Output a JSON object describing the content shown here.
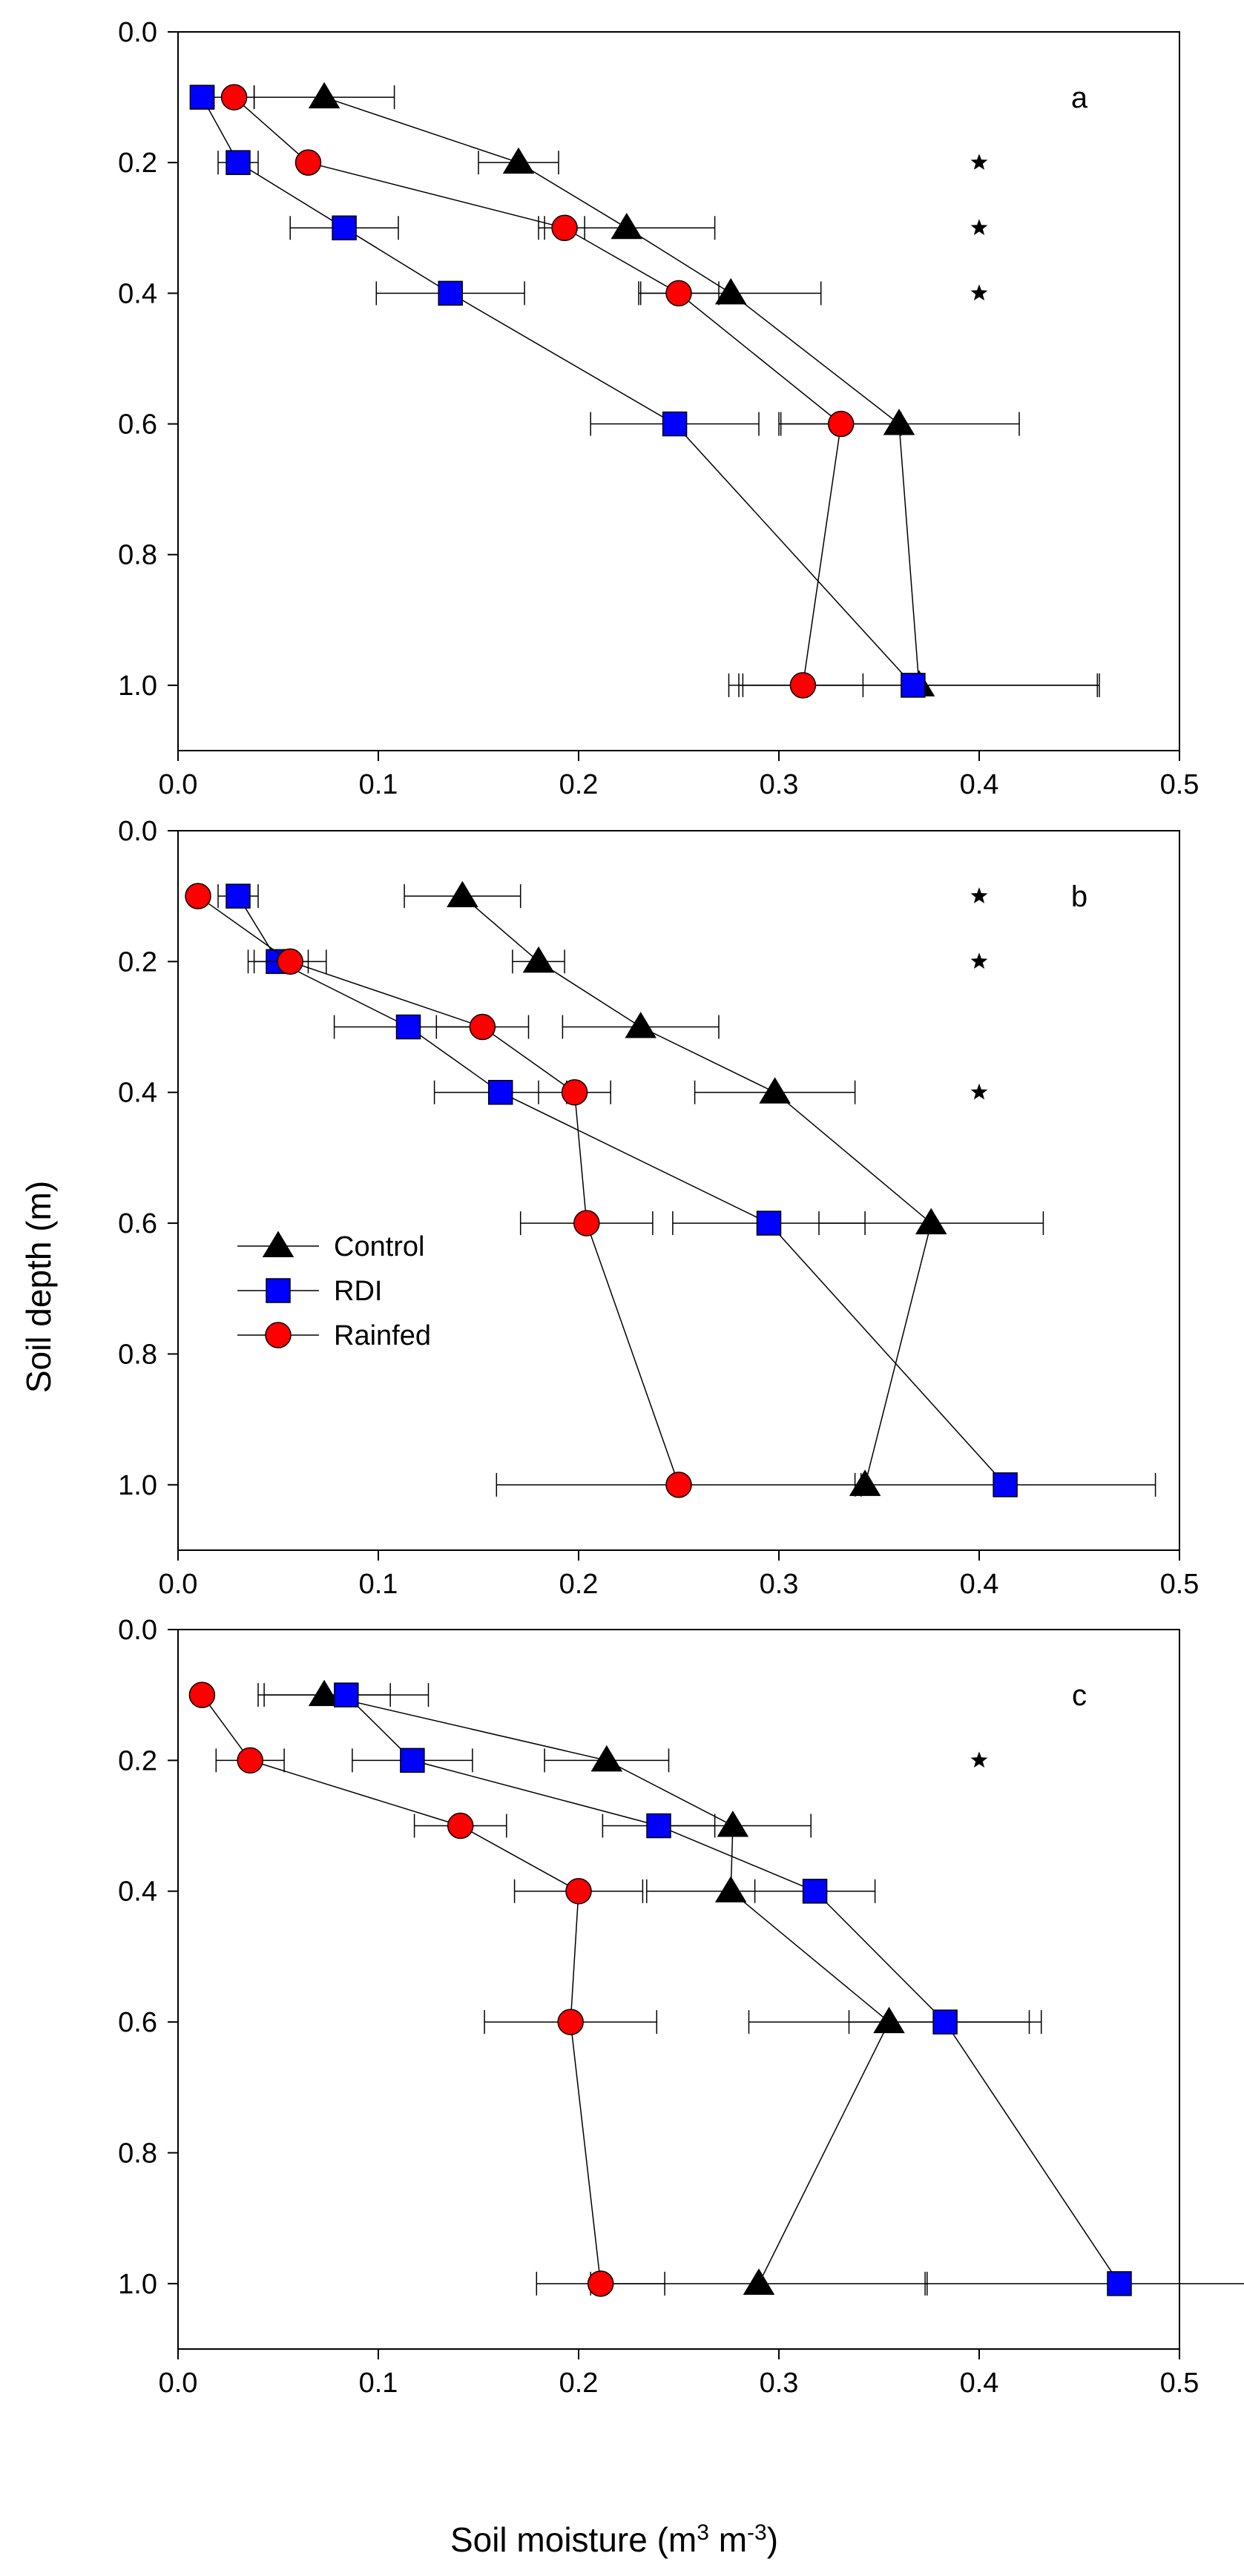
{
  "figure": {
    "xlabel_main": "Soil moisture (m",
    "xlabel_sup1": "3",
    "xlabel_mid": " m",
    "xlabel_sup2": "-3",
    "xlabel_end": ")",
    "ylabel": "Soil depth (m)"
  },
  "legend": {
    "items": [
      {
        "label": "Control",
        "marker": "triangle",
        "color": "#000000"
      },
      {
        "label": "RDI",
        "marker": "square",
        "color": "#0000ff"
      },
      {
        "label": "Rainfed",
        "marker": "circle",
        "color": "#ff0000"
      }
    ]
  },
  "chart_data": [
    {
      "type": "line",
      "panel": "a",
      "xlabel": "Soil moisture (m3 m-3)",
      "ylabel": "Soil depth (m)",
      "xlim": [
        0,
        0.5
      ],
      "ylim": [
        0,
        1.1
      ],
      "y_inverted": true,
      "x_ticks": [
        "0.0",
        "0.1",
        "0.2",
        "0.3",
        "0.4",
        "0.5"
      ],
      "y_ticks": [
        "0.0",
        "0.2",
        "0.4",
        "0.6",
        "0.8",
        "1.0"
      ],
      "significance_depths": [
        0.2,
        0.3,
        0.4
      ],
      "significance_x": 0.4,
      "series": [
        {
          "name": "Control",
          "marker": "triangle",
          "color": "#000000",
          "depth": [
            0.1,
            0.2,
            0.3,
            0.4,
            0.6,
            1.0
          ],
          "values": [
            0.073,
            0.17,
            0.224,
            0.276,
            0.36,
            0.37
          ],
          "errors": [
            0.035,
            0.02,
            0.044,
            0.045,
            0.06,
            0.09
          ]
        },
        {
          "name": "RDI",
          "marker": "square",
          "color": "#0000ff",
          "depth": [
            0.1,
            0.2,
            0.3,
            0.4,
            0.6,
            1.0
          ],
          "values": [
            0.012,
            0.03,
            0.083,
            0.136,
            0.248,
            0.367
          ],
          "errors": [
            0.0,
            0.01,
            0.027,
            0.037,
            0.042,
            0.092
          ]
        },
        {
          "name": "Rainfed",
          "marker": "circle",
          "color": "#ff0000",
          "depth": [
            0.1,
            0.2,
            0.3,
            0.4,
            0.6,
            1.0
          ],
          "values": [
            0.028,
            0.065,
            0.193,
            0.25,
            0.331,
            0.312
          ],
          "errors": [
            0.01,
            0.0,
            0.01,
            0.02,
            0.03,
            0.03
          ]
        }
      ]
    },
    {
      "type": "line",
      "panel": "b",
      "xlabel": "Soil moisture (m3 m-3)",
      "ylabel": "Soil depth (m)",
      "xlim": [
        0,
        0.5
      ],
      "ylim": [
        0,
        1.1
      ],
      "y_inverted": true,
      "x_ticks": [
        "0.0",
        "0.1",
        "0.2",
        "0.3",
        "0.4",
        "0.5"
      ],
      "y_ticks": [
        "0.0",
        "0.2",
        "0.4",
        "0.6",
        "0.8",
        "1.0"
      ],
      "significance_depths": [
        0.1,
        0.2,
        0.4
      ],
      "significance_x": 0.4,
      "series": [
        {
          "name": "Control",
          "marker": "triangle",
          "color": "#000000",
          "depth": [
            0.1,
            0.2,
            0.3,
            0.4,
            0.6,
            1.0
          ],
          "values": [
            0.142,
            0.18,
            0.231,
            0.298,
            0.376,
            0.343
          ],
          "errors": [
            0.029,
            0.013,
            0.039,
            0.04,
            0.056,
            0.0
          ]
        },
        {
          "name": "RDI",
          "marker": "square",
          "color": "#0000ff",
          "depth": [
            0.1,
            0.2,
            0.3,
            0.4,
            0.6,
            1.0
          ],
          "values": [
            0.03,
            0.05,
            0.115,
            0.161,
            0.295,
            0.413
          ],
          "errors": [
            0.01,
            0.015,
            0.037,
            0.033,
            0.048,
            0.075
          ]
        },
        {
          "name": "Rainfed",
          "marker": "circle",
          "color": "#ff0000",
          "depth": [
            0.1,
            0.2,
            0.3,
            0.4,
            0.6,
            1.0
          ],
          "values": [
            0.01,
            0.056,
            0.152,
            0.198,
            0.204,
            0.25
          ],
          "errors": [
            0.0,
            0.018,
            0.023,
            0.018,
            0.033,
            0.091
          ]
        }
      ]
    },
    {
      "type": "line",
      "panel": "c",
      "xlabel": "Soil moisture (m3 m-3)",
      "ylabel": "Soil depth (m)",
      "xlim": [
        0,
        0.5
      ],
      "ylim": [
        0,
        1.1
      ],
      "y_inverted": true,
      "x_ticks": [
        "0.0",
        "0.1",
        "0.2",
        "0.3",
        "0.4",
        "0.5"
      ],
      "y_ticks": [
        "0.0",
        "0.2",
        "0.4",
        "0.6",
        "0.8",
        "1.0"
      ],
      "significance_depths": [
        0.2
      ],
      "significance_x": 0.4,
      "series": [
        {
          "name": "Control",
          "marker": "triangle",
          "color": "#000000",
          "depth": [
            0.1,
            0.2,
            0.3,
            0.4,
            0.6,
            1.0
          ],
          "values": [
            0.073,
            0.214,
            0.277,
            0.276,
            0.355,
            0.29
          ],
          "errors": [
            0.033,
            0.031,
            0.039,
            0.042,
            0.07,
            0.084
          ]
        },
        {
          "name": "RDI",
          "marker": "square",
          "color": "#0000ff",
          "depth": [
            0.1,
            0.2,
            0.3,
            0.4,
            0.6,
            1.0
          ],
          "values": [
            0.084,
            0.117,
            0.24,
            0.318,
            0.383,
            0.47
          ],
          "errors": [
            0.041,
            0.03,
            0.028,
            0.03,
            0.048,
            0.097
          ]
        },
        {
          "name": "Rainfed",
          "marker": "circle",
          "color": "#ff0000",
          "depth": [
            0.1,
            0.2,
            0.3,
            0.4,
            0.6,
            1.0
          ],
          "values": [
            0.012,
            0.036,
            0.141,
            0.2,
            0.196,
            0.211
          ],
          "errors": [
            0.0,
            0.017,
            0.023,
            0.032,
            0.043,
            0.032
          ]
        }
      ]
    }
  ]
}
